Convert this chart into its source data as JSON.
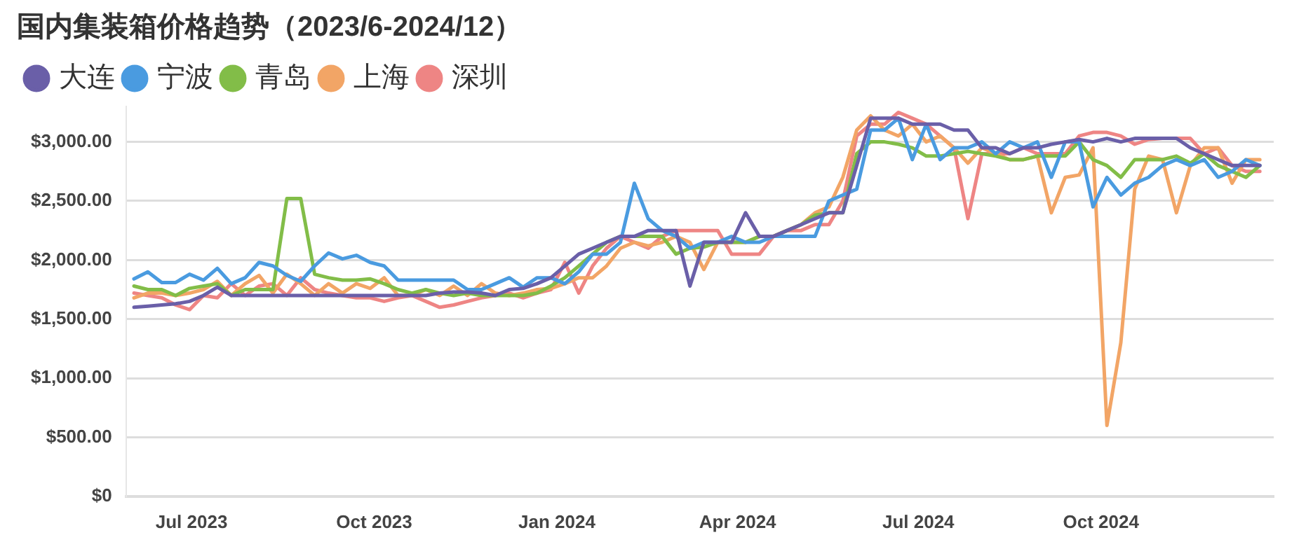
{
  "chart_data": {
    "type": "line",
    "title": "国内集装箱价格趋势（2023/6-2024/12）",
    "legend": "top left",
    "grid": "y",
    "marker": "none",
    "line_style": "solid",
    "x": [
      "2023-06-02",
      "2023-06-09",
      "2023-06-16",
      "2023-06-23",
      "2023-06-30",
      "2023-07-07",
      "2023-07-14",
      "2023-07-21",
      "2023-07-28",
      "2023-08-04",
      "2023-08-11",
      "2023-08-18",
      "2023-08-25",
      "2023-09-01",
      "2023-09-08",
      "2023-09-15",
      "2023-09-22",
      "2023-09-29",
      "2023-10-06",
      "2023-10-13",
      "2023-10-20",
      "2023-10-27",
      "2023-11-03",
      "2023-11-10",
      "2023-11-17",
      "2023-11-24",
      "2023-12-01",
      "2023-12-08",
      "2023-12-15",
      "2023-12-22",
      "2023-12-29",
      "2024-01-05",
      "2024-01-12",
      "2024-01-19",
      "2024-01-26",
      "2024-02-02",
      "2024-02-09",
      "2024-02-16",
      "2024-02-23",
      "2024-03-01",
      "2024-03-08",
      "2024-03-15",
      "2024-03-22",
      "2024-03-29",
      "2024-04-05",
      "2024-04-12",
      "2024-04-19",
      "2024-04-26",
      "2024-05-03",
      "2024-05-10",
      "2024-05-17",
      "2024-05-24",
      "2024-05-31",
      "2024-06-07",
      "2024-06-14",
      "2024-06-21",
      "2024-06-28",
      "2024-07-05",
      "2024-07-12",
      "2024-07-19",
      "2024-07-26",
      "2024-08-02",
      "2024-08-09",
      "2024-08-16",
      "2024-08-23",
      "2024-08-30",
      "2024-09-06",
      "2024-09-13",
      "2024-09-20",
      "2024-09-27",
      "2024-10-04",
      "2024-10-11",
      "2024-10-18",
      "2024-10-25",
      "2024-11-01",
      "2024-11-08",
      "2024-11-15",
      "2024-11-22",
      "2024-11-29",
      "2024-12-06",
      "2024-12-13",
      "2024-12-20"
    ],
    "xlim": [
      "2023-05-29",
      "2024-12-27"
    ],
    "xticks": [
      {
        "value": "2023-07-01",
        "label": "Jul 2023"
      },
      {
        "value": "2023-10-01",
        "label": "Oct 2023"
      },
      {
        "value": "2024-01-01",
        "label": "Jan 2024"
      },
      {
        "value": "2024-04-01",
        "label": "Apr 2024"
      },
      {
        "value": "2024-07-01",
        "label": "Jul 2024"
      },
      {
        "value": "2024-10-01",
        "label": "Oct 2024"
      }
    ],
    "ylim": [
      0,
      3300
    ],
    "yticks": [
      {
        "value": 0,
        "label": "$0"
      },
      {
        "value": 500,
        "label": "$500.00"
      },
      {
        "value": 1000,
        "label": "$1,000.00"
      },
      {
        "value": 1500,
        "label": "$1,500.00"
      },
      {
        "value": 2000,
        "label": "$2,000.00"
      },
      {
        "value": 2500,
        "label": "$2,500.00"
      },
      {
        "value": 3000,
        "label": "$3,000.00"
      }
    ],
    "series": [
      {
        "name": "大连",
        "color": "#6a5fa8",
        "values": [
          1600,
          1610,
          1620,
          1630,
          1650,
          1700,
          1770,
          1700,
          1700,
          1700,
          1700,
          1700,
          1700,
          1700,
          1700,
          1700,
          1700,
          1700,
          1700,
          1700,
          1700,
          1700,
          1720,
          1730,
          1730,
          1720,
          1700,
          1750,
          1760,
          1800,
          1850,
          1950,
          2050,
          2100,
          2150,
          2200,
          2200,
          2250,
          2250,
          2250,
          1780,
          2150,
          2150,
          2150,
          2400,
          2200,
          2200,
          2250,
          2300,
          2350,
          2400,
          2400,
          2800,
          3200,
          3200,
          3200,
          3150,
          3150,
          3150,
          3100,
          3100,
          2950,
          2950,
          2900,
          2950,
          2950,
          2980,
          3000,
          3020,
          3000,
          3030,
          3000,
          3030,
          3030,
          3030,
          3030,
          2950,
          2900,
          2850,
          2800,
          2800,
          2800
        ]
      },
      {
        "name": "宁波",
        "color": "#4a9be0",
        "values": [
          1840,
          1900,
          1810,
          1810,
          1880,
          1830,
          1930,
          1800,
          1850,
          1980,
          1950,
          1870,
          1820,
          1950,
          2060,
          2010,
          2040,
          1980,
          1950,
          1830,
          1830,
          1830,
          1830,
          1830,
          1750,
          1750,
          1800,
          1850,
          1770,
          1850,
          1850,
          1800,
          1900,
          2050,
          2050,
          2150,
          2650,
          2350,
          2250,
          2200,
          2100,
          2150,
          2150,
          2200,
          2150,
          2150,
          2200,
          2200,
          2200,
          2200,
          2500,
          2550,
          2600,
          3100,
          3100,
          3200,
          2850,
          3150,
          2850,
          2950,
          2950,
          3000,
          2900,
          3000,
          2950,
          3000,
          2700,
          3000,
          3000,
          2450,
          2700,
          2550,
          2650,
          2700,
          2800,
          2850,
          2800,
          2850,
          2700,
          2750,
          2850,
          2800
        ]
      },
      {
        "name": "青岛",
        "color": "#82bd48",
        "values": [
          1780,
          1750,
          1750,
          1700,
          1760,
          1780,
          1800,
          1700,
          1750,
          1750,
          1750,
          2520,
          2520,
          1880,
          1850,
          1830,
          1830,
          1840,
          1800,
          1750,
          1720,
          1750,
          1720,
          1700,
          1720,
          1700,
          1700,
          1700,
          1700,
          1720,
          1780,
          1850,
          1950,
          2050,
          2150,
          2200,
          2200,
          2200,
          2200,
          2050,
          2100,
          2110,
          2150,
          2150,
          2150,
          2200,
          2200,
          2250,
          2300,
          2380,
          2400,
          2400,
          2900,
          3000,
          3000,
          2980,
          2950,
          2880,
          2880,
          2900,
          2920,
          2900,
          2880,
          2850,
          2850,
          2880,
          2880,
          2880,
          3000,
          2850,
          2800,
          2700,
          2850,
          2850,
          2850,
          2880,
          2820,
          2900,
          2800,
          2750,
          2700,
          2800
        ]
      },
      {
        "name": "上海",
        "color": "#f2a566",
        "values": [
          1680,
          1720,
          1720,
          1700,
          1720,
          1750,
          1820,
          1700,
          1800,
          1870,
          1720,
          1880,
          1800,
          1700,
          1800,
          1720,
          1800,
          1760,
          1850,
          1700,
          1700,
          1750,
          1700,
          1780,
          1700,
          1800,
          1720,
          1700,
          1720,
          1750,
          1760,
          1800,
          1850,
          1850,
          1950,
          2100,
          2150,
          2120,
          2150,
          2200,
          2150,
          1920,
          2150,
          2150,
          2150,
          2200,
          2200,
          2250,
          2300,
          2400,
          2450,
          2700,
          3100,
          3220,
          3100,
          3050,
          3150,
          3000,
          3050,
          2950,
          2820,
          2950,
          2900,
          2850,
          2850,
          2880,
          2400,
          2700,
          2720,
          2950,
          600,
          1300,
          2600,
          2880,
          2850,
          2400,
          2800,
          2950,
          2950,
          2650,
          2850,
          2850
        ]
      },
      {
        "name": "深圳",
        "color": "#ee8584",
        "values": [
          1720,
          1700,
          1680,
          1620,
          1580,
          1700,
          1680,
          1800,
          1700,
          1780,
          1800,
          1700,
          1850,
          1750,
          1720,
          1700,
          1680,
          1680,
          1650,
          1680,
          1700,
          1650,
          1600,
          1620,
          1650,
          1680,
          1700,
          1720,
          1680,
          1720,
          1750,
          1980,
          1720,
          1950,
          2100,
          2200,
          2150,
          2100,
          2200,
          2250,
          2250,
          2250,
          2250,
          2050,
          2050,
          2050,
          2200,
          2250,
          2250,
          2300,
          2300,
          2500,
          3050,
          3150,
          3150,
          3250,
          3200,
          3150,
          3050,
          2950,
          2350,
          2900,
          2900,
          2900,
          2950,
          2900,
          2900,
          2900,
          3050,
          3080,
          3080,
          3050,
          2980,
          3020,
          3030,
          3030,
          3030,
          2900,
          2950,
          2800,
          2750,
          2750
        ]
      }
    ]
  }
}
